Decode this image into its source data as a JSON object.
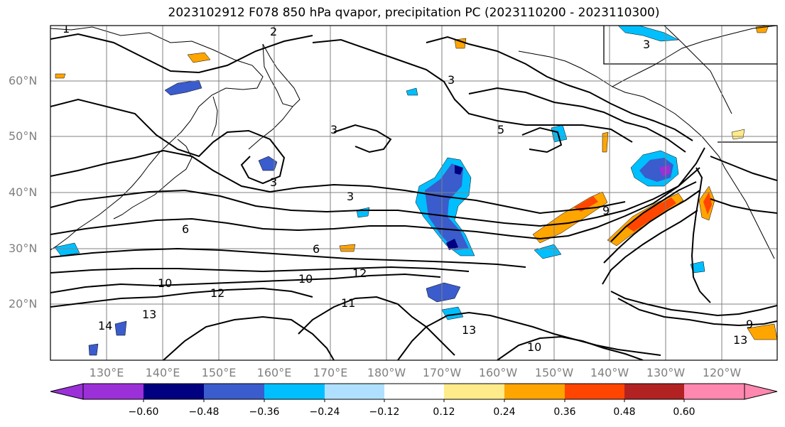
{
  "title": "2023102912 F078 850 hPa qvapor, precipitation PC (2023110200 - 2023110300)",
  "latitude_labels": [
    "60°N",
    "50°N",
    "40°N",
    "30°N",
    "20°N"
  ],
  "longitude_labels": [
    "130°E",
    "140°E",
    "150°E",
    "160°E",
    "170°E",
    "180°W",
    "170°W",
    "160°W",
    "150°W",
    "140°W",
    "130°W",
    "120°W"
  ],
  "colorbar": {
    "tick_labels": [
      "−0.60",
      "−0.48",
      "−0.36",
      "−0.24",
      "−0.12",
      "0.12",
      "0.24",
      "0.36",
      "0.48",
      "0.60"
    ],
    "colors": [
      "#9b30d9",
      "#000080",
      "#3a5ccc",
      "#00bfff",
      "#b0e0ff",
      "#ffffff",
      "#ffeb8a",
      "#ffa500",
      "#ff4500",
      "#b22222",
      "#ff88b0"
    ]
  },
  "contour_labels": [
    "1",
    "2",
    "3",
    "3",
    "3",
    "3",
    "3",
    "5",
    "6",
    "6",
    "9",
    "10",
    "10",
    "11",
    "12",
    "12",
    "13",
    "13",
    "14",
    "10",
    "9",
    "13"
  ],
  "colors": {
    "coast": "#000000",
    "grid": "#808080",
    "contour": "#000000",
    "neg_deep": "#3a5ccc",
    "neg_mid": "#00bfff",
    "neg_light": "#b0e0ff",
    "pos_light": "#ffeb8a",
    "pos_mid": "#ffa500",
    "pos_deep": "#ff4500"
  }
}
